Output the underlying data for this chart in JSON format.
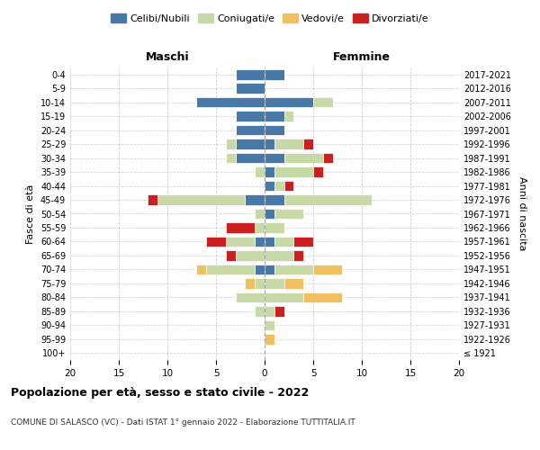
{
  "age_groups": [
    "100+",
    "95-99",
    "90-94",
    "85-89",
    "80-84",
    "75-79",
    "70-74",
    "65-69",
    "60-64",
    "55-59",
    "50-54",
    "45-49",
    "40-44",
    "35-39",
    "30-34",
    "25-29",
    "20-24",
    "15-19",
    "10-14",
    "5-9",
    "0-4"
  ],
  "birth_years": [
    "≤ 1921",
    "1922-1926",
    "1927-1931",
    "1932-1936",
    "1937-1941",
    "1942-1946",
    "1947-1951",
    "1952-1956",
    "1957-1961",
    "1962-1966",
    "1967-1971",
    "1972-1976",
    "1977-1981",
    "1982-1986",
    "1987-1991",
    "1992-1996",
    "1997-2001",
    "2002-2006",
    "2007-2011",
    "2012-2016",
    "2017-2021"
  ],
  "colors": {
    "celibi": "#4878a8",
    "coniugati": "#c8d9a8",
    "vedovi": "#f0c060",
    "divorziati": "#cc2020"
  },
  "males": {
    "celibi": [
      0,
      0,
      0,
      0,
      0,
      0,
      1,
      0,
      1,
      0,
      0,
      2,
      0,
      0,
      3,
      3,
      3,
      3,
      7,
      3,
      3
    ],
    "coniugati": [
      0,
      0,
      0,
      1,
      3,
      1,
      5,
      3,
      3,
      1,
      1,
      9,
      0,
      1,
      1,
      1,
      0,
      0,
      0,
      0,
      0
    ],
    "vedovi": [
      0,
      0,
      0,
      0,
      0,
      1,
      1,
      0,
      0,
      0,
      0,
      0,
      0,
      0,
      0,
      0,
      0,
      0,
      0,
      0,
      0
    ],
    "divorziati": [
      0,
      0,
      0,
      0,
      0,
      0,
      0,
      1,
      2,
      3,
      0,
      1,
      0,
      0,
      0,
      0,
      0,
      0,
      0,
      0,
      0
    ]
  },
  "females": {
    "celibi": [
      0,
      0,
      0,
      0,
      0,
      0,
      1,
      0,
      1,
      0,
      1,
      2,
      1,
      1,
      2,
      1,
      2,
      2,
      5,
      0,
      2
    ],
    "coniugati": [
      0,
      0,
      1,
      1,
      4,
      2,
      4,
      3,
      2,
      2,
      3,
      9,
      1,
      4,
      4,
      3,
      0,
      1,
      2,
      0,
      0
    ],
    "vedovi": [
      0,
      1,
      0,
      0,
      4,
      2,
      3,
      0,
      0,
      0,
      0,
      0,
      0,
      0,
      0,
      0,
      0,
      0,
      0,
      0,
      0
    ],
    "divorziati": [
      0,
      0,
      0,
      1,
      0,
      0,
      0,
      1,
      2,
      0,
      0,
      0,
      1,
      1,
      1,
      1,
      0,
      0,
      0,
      0,
      0
    ]
  },
  "xlim": 20,
  "title": "Popolazione per età, sesso e stato civile - 2022",
  "subtitle": "COMUNE DI SALASCO (VC) - Dati ISTAT 1° gennaio 2022 - Elaborazione TUTTITALIA.IT",
  "ylabel_left": "Fasce di età",
  "ylabel_right": "Anni di nascita",
  "xlabel_left": "Maschi",
  "xlabel_right": "Femmine"
}
